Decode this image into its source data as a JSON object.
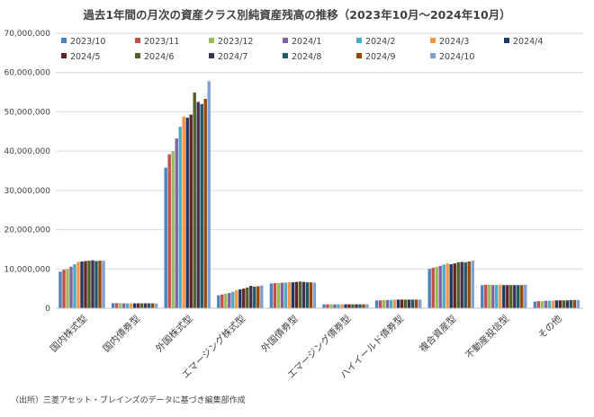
{
  "chart_data": {
    "type": "bar",
    "title": "過去1年間の月次の資産クラス別純資産残高の推移（2023年10月～2024年10月）",
    "source": "（出所）三菱アセット・ブレインズのデータに基づき編集部作成",
    "ylim": [
      0,
      70000000
    ],
    "yticks": [
      0,
      10000000,
      20000000,
      30000000,
      40000000,
      50000000,
      60000000,
      70000000
    ],
    "ytick_labels": [
      "0",
      "10,000,000",
      "20,000,000",
      "30,000,000",
      "40,000,000",
      "50,000,000",
      "60,000,000",
      "70,000,000"
    ],
    "grid": true,
    "legend_position": "top",
    "categories": [
      "国内株式型",
      "国内債券型",
      "外国株式型",
      "エマージング株式型",
      "外国債券型",
      "エマージング債券型",
      "ハイイールド債券型",
      "複合資産型",
      "不動産投信型",
      "その他"
    ],
    "series": [
      {
        "name": "2023/10",
        "color": "#4F81BD",
        "values": [
          9300000,
          1300000,
          35800000,
          3300000,
          6300000,
          1000000,
          2000000,
          10000000,
          5900000,
          1700000
        ]
      },
      {
        "name": "2023/11",
        "color": "#C0504D",
        "values": [
          9800000,
          1300000,
          39200000,
          3500000,
          6400000,
          1000000,
          2000000,
          10300000,
          6000000,
          1800000
        ]
      },
      {
        "name": "2023/12",
        "color": "#9BBB59",
        "values": [
          10000000,
          1300000,
          40000000,
          3700000,
          6400000,
          1000000,
          2100000,
          10500000,
          6000000,
          1800000
        ]
      },
      {
        "name": "2024/1",
        "color": "#8064A2",
        "values": [
          10600000,
          1250000,
          43200000,
          3900000,
          6500000,
          1000000,
          2100000,
          10800000,
          5900000,
          1900000
        ]
      },
      {
        "name": "2024/2",
        "color": "#4BACC6",
        "values": [
          11200000,
          1250000,
          46200000,
          4200000,
          6500000,
          1000000,
          2100000,
          11100000,
          5900000,
          1900000
        ]
      },
      {
        "name": "2024/3",
        "color": "#F79646",
        "values": [
          11800000,
          1250000,
          48800000,
          4600000,
          6600000,
          1000000,
          2200000,
          11400000,
          6000000,
          1900000
        ]
      },
      {
        "name": "2024/4",
        "color": "#1F3864",
        "values": [
          11900000,
          1250000,
          48500000,
          4800000,
          6600000,
          1000000,
          2200000,
          11200000,
          5900000,
          2000000
        ]
      },
      {
        "name": "2024/5",
        "color": "#632523",
        "values": [
          12000000,
          1250000,
          49300000,
          5000000,
          6700000,
          1000000,
          2200000,
          11400000,
          5900000,
          2000000
        ]
      },
      {
        "name": "2024/6",
        "color": "#4F6228",
        "values": [
          12100000,
          1250000,
          54900000,
          5300000,
          6800000,
          1000000,
          2200000,
          11700000,
          5900000,
          2000000
        ]
      },
      {
        "name": "2024/7",
        "color": "#3F3151",
        "values": [
          12200000,
          1250000,
          52500000,
          5700000,
          6700000,
          1000000,
          2200000,
          11800000,
          5900000,
          2000000
        ]
      },
      {
        "name": "2024/8",
        "color": "#215968",
        "values": [
          12000000,
          1250000,
          52000000,
          5500000,
          6600000,
          1000000,
          2200000,
          11700000,
          5900000,
          2100000
        ]
      },
      {
        "name": "2024/9",
        "color": "#974806",
        "values": [
          12100000,
          1250000,
          53300000,
          5600000,
          6600000,
          1000000,
          2200000,
          11900000,
          5900000,
          2100000
        ]
      },
      {
        "name": "2024/10",
        "color": "#7F9FCF",
        "values": [
          12100000,
          1200000,
          57800000,
          5800000,
          6500000,
          1000000,
          2200000,
          12100000,
          6000000,
          2100000
        ]
      }
    ]
  }
}
